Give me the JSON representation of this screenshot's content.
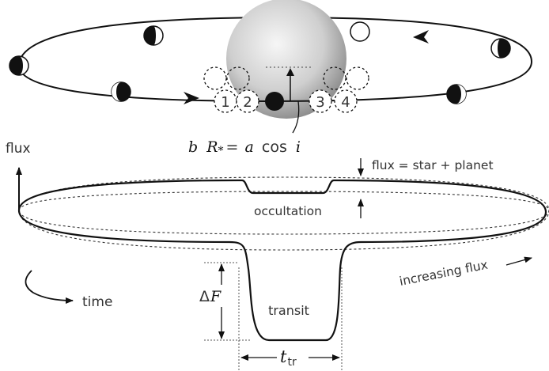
{
  "labels": {
    "contact_1": "1",
    "contact_2": "2",
    "contact_3": "3",
    "contact_4": "4",
    "impact_b": "b",
    "impact_R": "R",
    "impact_star": "*",
    "impact_eq": "=",
    "impact_a": "a",
    "impact_cos": "cos",
    "impact_i": "i",
    "flux_axis": "flux",
    "time_axis": "time",
    "flux_sum": "flux = star + planet",
    "occultation": "occultation",
    "increasing_flux": "increasing flux",
    "delta_symbol": "Δ",
    "delta_F": "F",
    "transit": "transit",
    "t_symbol": "t",
    "t_sub": "tr"
  },
  "colors": {
    "ink": "#111111",
    "text": "#333333",
    "star_light": "#f4f4f4",
    "star_dark": "#8a8a8a"
  }
}
